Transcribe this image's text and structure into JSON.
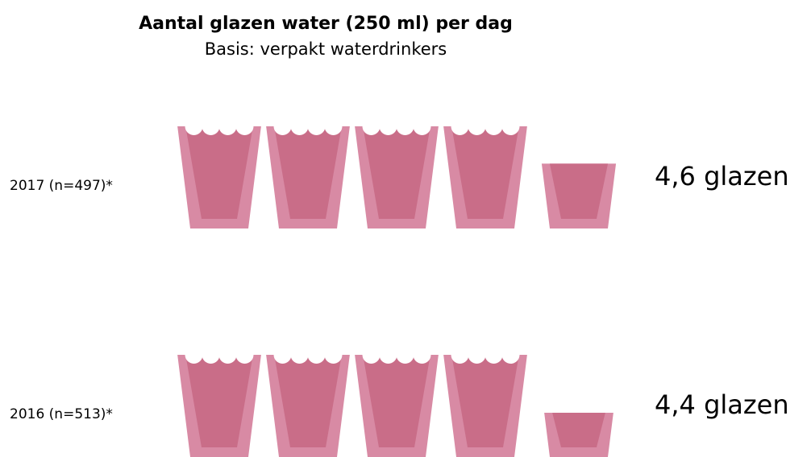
{
  "chart_data": {
    "type": "pictograph",
    "title": "Aantal glazen water (250 ml) per dag",
    "subtitle": "Basis: verpakt waterdrinkers",
    "unit_icon": "water-glass-icon",
    "unit": "glazen",
    "colors": {
      "glass_outer": "#d88aa4",
      "glass_inner": "#c96d88",
      "foam": "#ffffff"
    },
    "rows": [
      {
        "label": "2017 (n=497)*",
        "value": 4.6,
        "value_label": "4,6 glazen"
      },
      {
        "label": "2016 (n=513)*",
        "value": 4.4,
        "value_label": "4,4 glazen"
      }
    ]
  }
}
